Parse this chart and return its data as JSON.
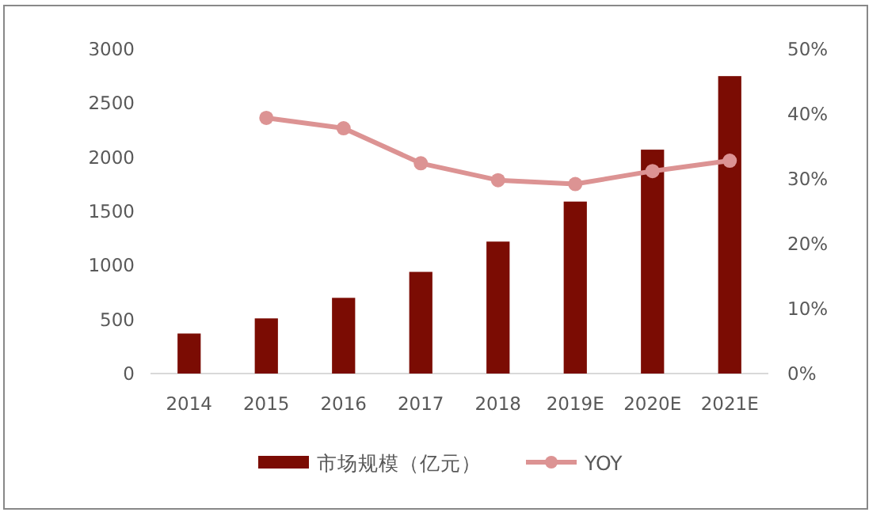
{
  "chart_data": {
    "type": "bar",
    "categories": [
      "2014",
      "2015",
      "2016",
      "2017",
      "2018",
      "2019E",
      "2020E",
      "2021E"
    ],
    "series": [
      {
        "name": "市场规模（亿元）",
        "color": "#7b0c03",
        "values": [
          370,
          510,
          700,
          940,
          1220,
          1590,
          2070,
          2750
        ]
      },
      {
        "name": "YOY",
        "type": "line",
        "axis": "y2",
        "color": "#dc9393",
        "marker": "circle",
        "values": [
          null,
          39.4,
          37.8,
          32.4,
          29.8,
          29.2,
          31.2,
          32.8
        ]
      }
    ],
    "ylim": [
      0,
      3000
    ],
    "yticks": [
      0,
      500,
      1000,
      1500,
      2000,
      2500,
      3000
    ],
    "y2lim": [
      0,
      50
    ],
    "y2ticks": [
      {
        "value": 0,
        "label": "0%"
      },
      {
        "value": 10,
        "label": "10%"
      },
      {
        "value": 20,
        "label": "20%"
      },
      {
        "value": 30,
        "label": "30%"
      },
      {
        "value": 40,
        "label": "40%"
      },
      {
        "value": 50,
        "label": "50%"
      }
    ],
    "legend": "bottom",
    "grid": false
  }
}
